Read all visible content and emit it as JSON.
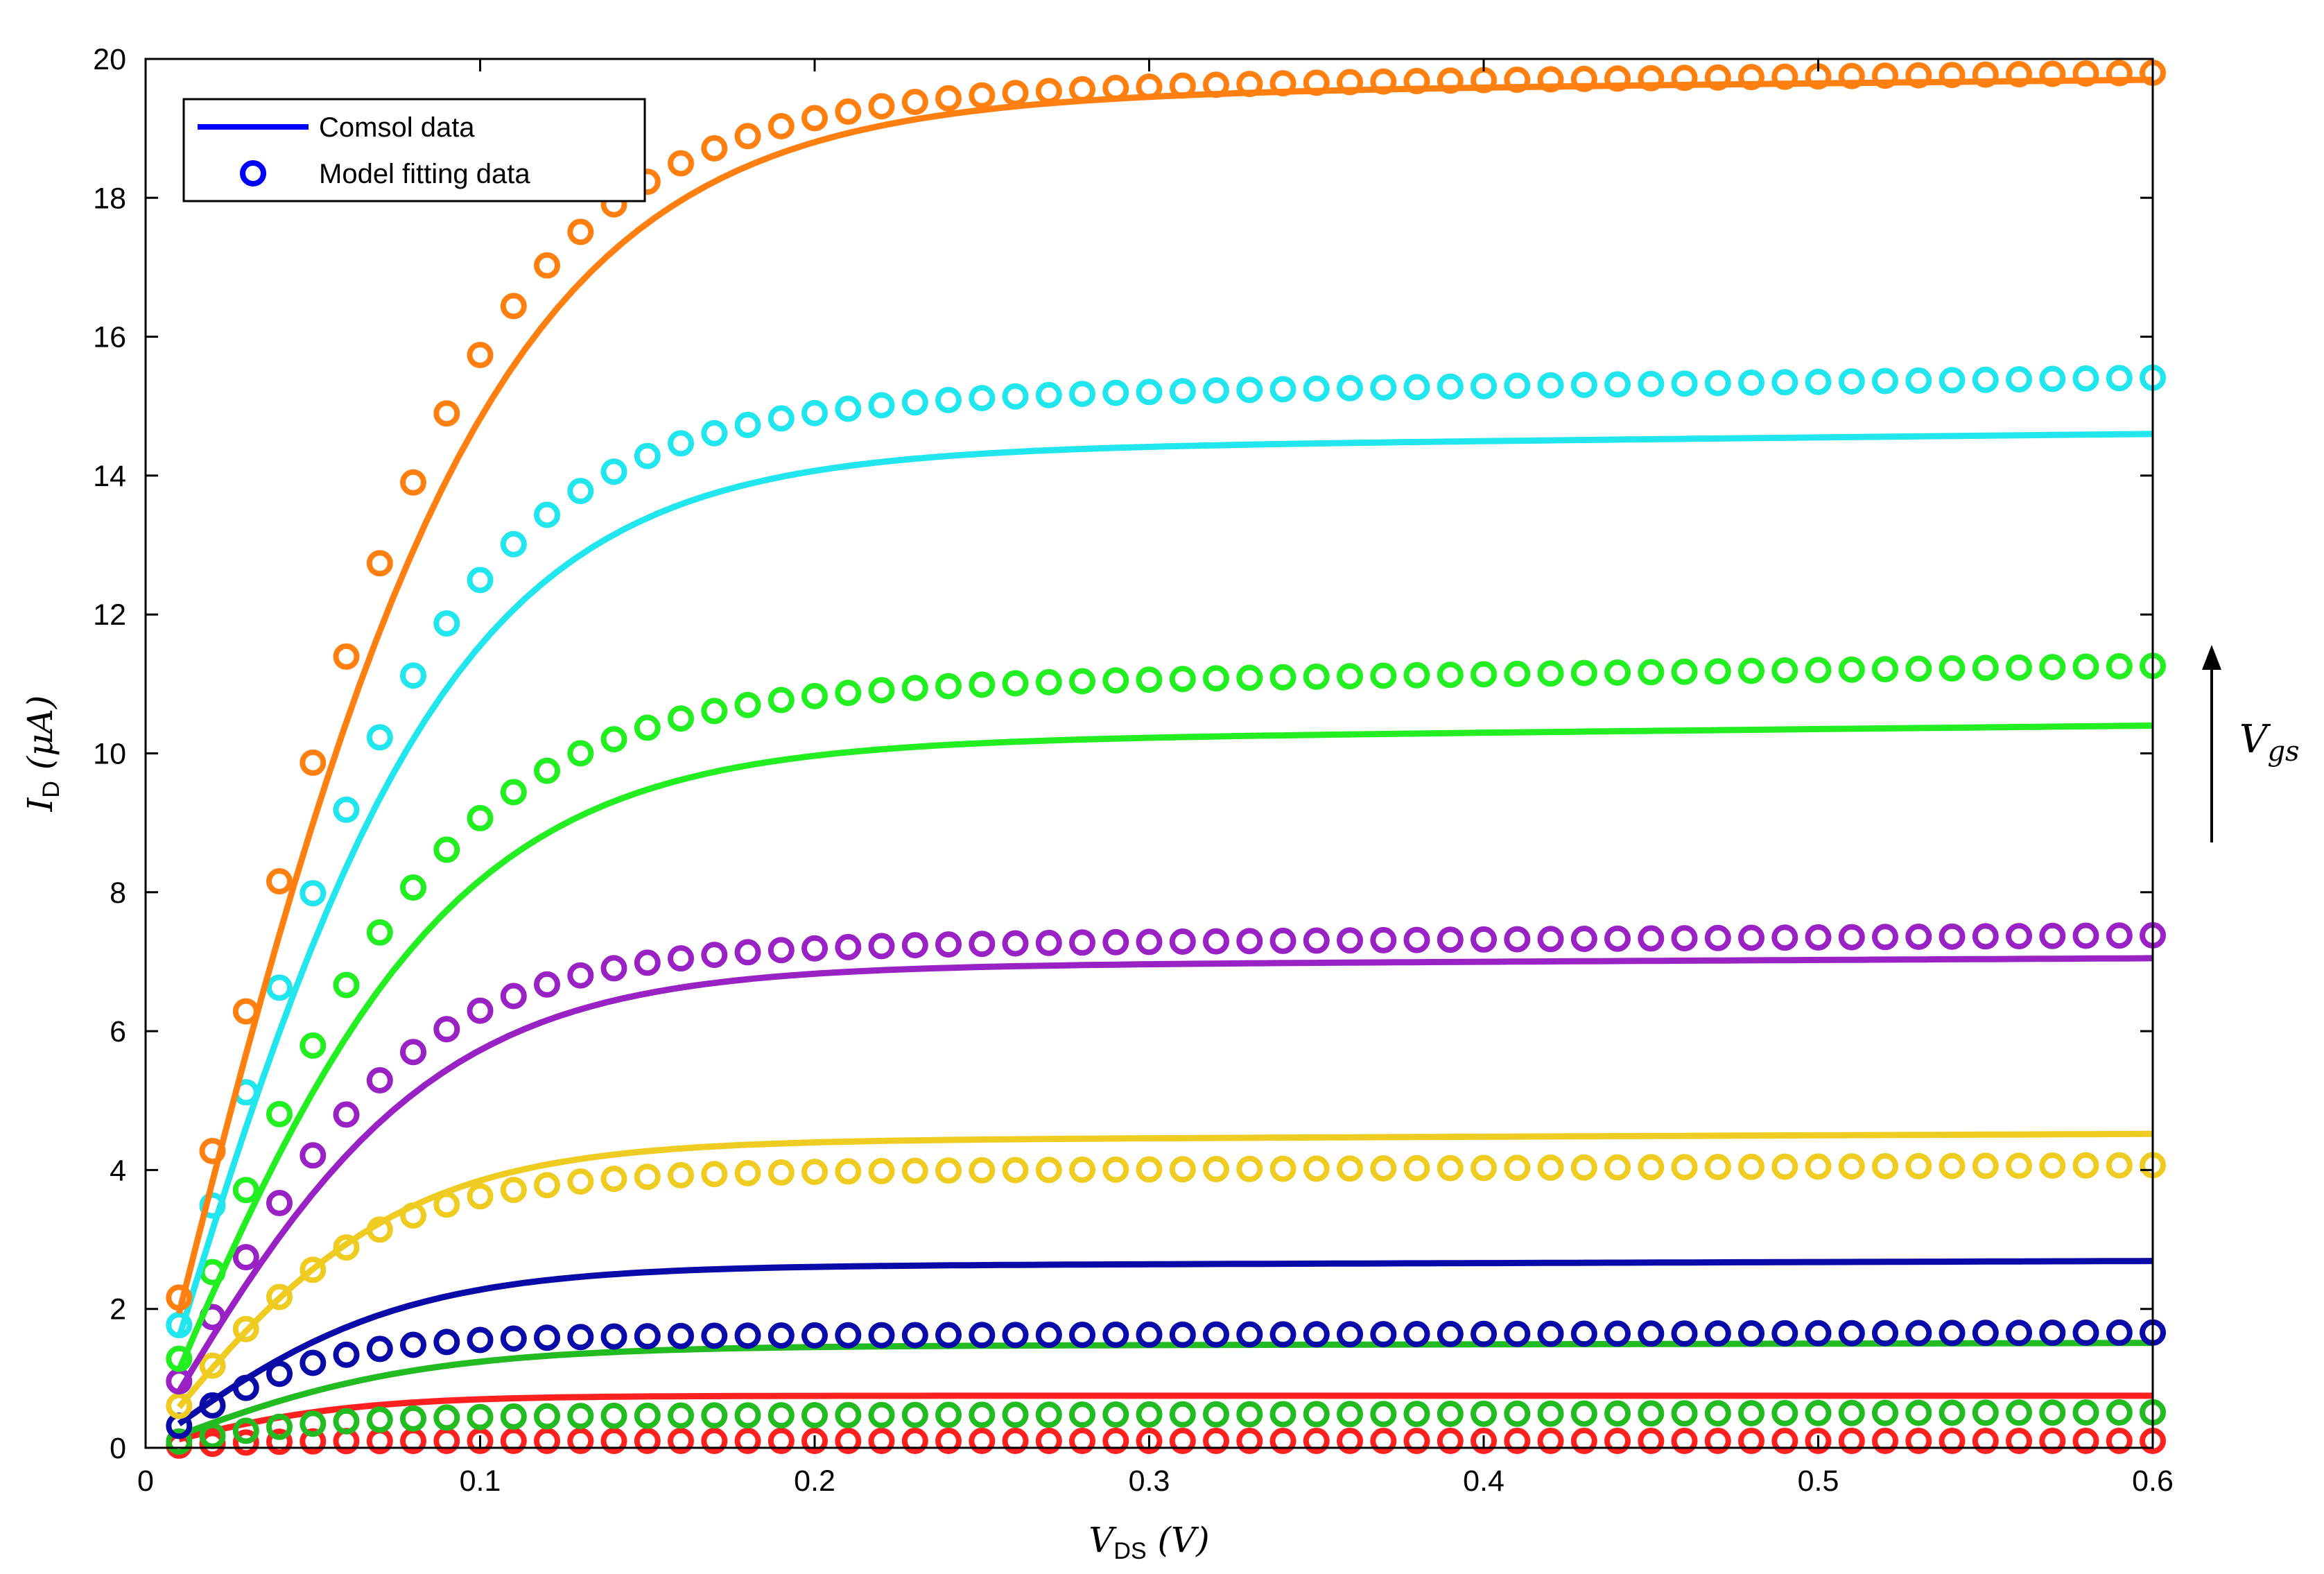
{
  "chart_data": {
    "type": "line",
    "title": "",
    "xlabel": {
      "main": "V",
      "sub": "DS",
      "unit": " (V)"
    },
    "ylabel": {
      "main": "I",
      "sub": "D",
      "unit": " (μA)"
    },
    "xlim": [
      0,
      0.6
    ],
    "ylim": [
      0,
      20
    ],
    "xticks": [
      0,
      0.1,
      0.2,
      0.3,
      0.4,
      0.5,
      0.6
    ],
    "xtick_labels": [
      "0",
      "0.1",
      "0.2",
      "0.3",
      "0.4",
      "0.5",
      "0.6"
    ],
    "yticks": [
      0,
      2,
      4,
      6,
      8,
      10,
      12,
      14,
      16,
      18,
      20
    ],
    "ytick_labels": [
      "0",
      "2",
      "4",
      "6",
      "8",
      "10",
      "12",
      "14",
      "16",
      "18",
      "20"
    ],
    "grid": false,
    "legend": {
      "position": "top-left",
      "entries": [
        {
          "label": "Comsol data",
          "marker": "line",
          "color": "#0000ff"
        },
        {
          "label": "Model fitting data",
          "marker": "circle",
          "color": "#0000ff"
        }
      ]
    },
    "annotation": {
      "main": "V",
      "sub": "gs",
      "arrow": "up"
    },
    "x_points": [
      0.01,
      0.02,
      0.03,
      0.04,
      0.05,
      0.06,
      0.07,
      0.08,
      0.09,
      0.1,
      0.11,
      0.12,
      0.13,
      0.14,
      0.15,
      0.16,
      0.17,
      0.18,
      0.19,
      0.2,
      0.21,
      0.22,
      0.23,
      0.24,
      0.25,
      0.26,
      0.27,
      0.28,
      0.29,
      0.3,
      0.31,
      0.32,
      0.33,
      0.34,
      0.35,
      0.36,
      0.37,
      0.38,
      0.39,
      0.4,
      0.41,
      0.42,
      0.43,
      0.44,
      0.45,
      0.46,
      0.47,
      0.48,
      0.49,
      0.5,
      0.51,
      0.52,
      0.53,
      0.54,
      0.55,
      0.56,
      0.57,
      0.58,
      0.59,
      0.6
    ],
    "series": [
      {
        "color": "#ff2020",
        "line_params": [
          0.75,
          0.06
        ],
        "line_slope": 0.0,
        "model_params": [
          0.1,
          0.03
        ],
        "model_slope": 0.0
      },
      {
        "color": "#22bb22",
        "line_params": [
          1.45,
          0.08
        ],
        "line_slope": 0.1,
        "model_params": [
          0.45,
          0.05
        ],
        "model_slope": 0.1
      },
      {
        "color": "#0a0aa8",
        "line_params": [
          2.6,
          0.075
        ],
        "line_slope": 0.15,
        "model_params": [
          1.6,
          0.05
        ],
        "model_slope": 0.1
      },
      {
        "color": "#eecc22",
        "line_params": [
          4.4,
          0.075
        ],
        "line_slope": 0.2,
        "model_params": [
          3.95,
          0.065
        ],
        "model_slope": 0.2
      },
      {
        "color": "#9922c4",
        "line_params": [
          6.9,
          0.085
        ],
        "line_slope": 0.25,
        "model_params": [
          7.2,
          0.075
        ],
        "model_slope": 0.3
      },
      {
        "color": "#22ee22",
        "line_params": [
          10.1,
          0.09
        ],
        "line_slope": 0.5,
        "model_params": [
          10.9,
          0.085
        ],
        "model_slope": 0.6
      },
      {
        "color": "#22e6ee",
        "line_params": [
          14.3,
          0.09
        ],
        "line_slope": 0.5,
        "model_params": [
          15.05,
          0.085
        ],
        "model_slope": 0.6
      },
      {
        "color": "#ff8010",
        "line_params": [
          19.4,
          0.1
        ],
        "line_slope": 0.5,
        "model_params": [
          19.5,
          0.09
        ],
        "model_slope": 0.5
      }
    ]
  }
}
